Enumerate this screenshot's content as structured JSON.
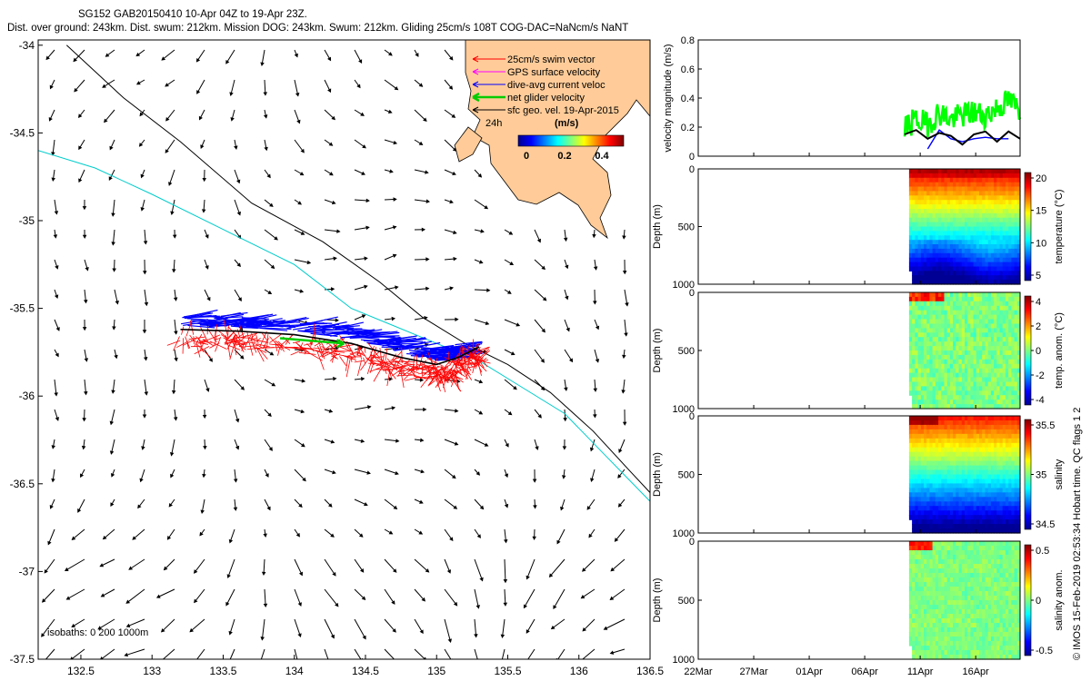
{
  "header": {
    "line1": "SG152 GAB20150410 10-Apr 04Z to 19-Apr 23Z.",
    "line2": "Dist. over ground: 243km. Dist. swum: 212km. Mission DOG: 243km. Swum: 212km. Gliding 25cm/s 108T COG-DAC=NaNcm/s NaNT"
  },
  "map": {
    "xticks": [
      "132.5",
      "133",
      "133.5",
      "134",
      "134.5",
      "135",
      "135.5",
      "136",
      "136.5"
    ],
    "yticks": [
      "-34",
      "-34.5",
      "-35",
      "-35.5",
      "-36",
      "-36.5",
      "-37",
      "-37.5"
    ],
    "legend": [
      {
        "label": "25cm/s swim vector",
        "color": "#ff0000"
      },
      {
        "label": "GPS surface velocity",
        "color": "#ff00ff"
      },
      {
        "label": "dive-avg current veloc",
        "color": "#0000ff"
      },
      {
        "label": "net glider velocity",
        "color": "#00cc00"
      },
      {
        "label": "sfc geo. vel. 19-Apr-2015",
        "color": "#000000"
      }
    ],
    "legend_24h": "24h",
    "colorbar_units": "(m/s)",
    "colorbar_ticks": [
      "0",
      "0.2",
      "0.4"
    ],
    "isobaths_label": "isobaths: 0   200  1000m",
    "colors": {
      "land": "#ffcc99",
      "isobath_200": "#00cccc",
      "isobath_1000": "#000000"
    }
  },
  "time_axis": {
    "ticks": [
      "22Mar",
      "27Mar",
      "01Apr",
      "06Apr",
      "11Apr",
      "16Apr"
    ]
  },
  "panels": [
    {
      "ylabel": "velocity magnitude (m/s)",
      "yticks": [
        "0",
        "0.2",
        "0.4",
        "0.6",
        "0.8"
      ]
    },
    {
      "ylabel": "Depth (m)",
      "yticks": [
        "0",
        "500",
        "1000"
      ],
      "cblabel": "temperature (°C)",
      "cbticks": [
        "20",
        "15",
        "10",
        "5"
      ]
    },
    {
      "ylabel": "Depth (m)",
      "yticks": [
        "0",
        "500",
        "1000"
      ],
      "cblabel": "temp. anom. (°C)",
      "cbticks": [
        "4",
        "2",
        "0",
        "-2",
        "-4"
      ]
    },
    {
      "ylabel": "Depth (m)",
      "yticks": [
        "0",
        "500",
        "1000"
      ],
      "cblabel": "salinity",
      "cbticks": [
        "35.5",
        "35",
        "34.5"
      ]
    },
    {
      "ylabel": "Depth (m)",
      "yticks": [
        "0",
        "500",
        "1000"
      ],
      "cblabel": "salinity anom.",
      "cbticks": [
        "0.5",
        "0",
        "-0.5"
      ]
    }
  ],
  "footer_vertical": "© IMOS 15-Feb-2019 02:53:34 Hobart time. QC flags 1  2",
  "chart_data": [
    {
      "type": "scatter",
      "title": "",
      "xlabel": "",
      "ylabel": "",
      "xlim": [
        132.2,
        136.5
      ],
      "ylim": [
        -37.5,
        -33.97
      ],
      "glider_track": {
        "x": [
          133.2,
          133.6,
          134.0,
          134.4,
          134.75,
          135.0,
          135.15,
          135.3
        ],
        "y": [
          -35.62,
          -35.63,
          -35.65,
          -35.7,
          -35.78,
          -35.82,
          -35.78,
          -35.72
        ]
      },
      "net_glider_velocity_arrow": {
        "from": [
          133.9,
          -35.67
        ],
        "to": [
          134.35,
          -35.7
        ]
      },
      "isobath_200m": {
        "x": [
          132.2,
          132.6,
          133.0,
          133.5,
          134.0,
          134.4,
          134.7,
          135.0,
          135.3,
          135.6,
          135.9,
          136.2,
          136.5
        ],
        "y": [
          -34.6,
          -34.7,
          -34.85,
          -35.05,
          -35.25,
          -35.5,
          -35.6,
          -35.7,
          -35.8,
          -35.95,
          -36.1,
          -36.35,
          -36.6
        ]
      },
      "isobath_1000m": {
        "x": [
          132.4,
          132.8,
          133.2,
          133.7,
          134.2,
          134.6,
          134.9,
          135.2,
          135.5,
          135.8,
          136.1,
          136.35,
          136.5
        ],
        "y": [
          -34.0,
          -34.3,
          -34.55,
          -34.9,
          -35.12,
          -35.35,
          -35.55,
          -35.7,
          -35.82,
          -35.98,
          -36.2,
          -36.42,
          -36.55
        ]
      }
    },
    {
      "type": "line",
      "title": "",
      "xlabel": "",
      "ylabel": "velocity magnitude (m/s)",
      "xlim": [
        "22Mar",
        "20Apr"
      ],
      "ylim": [
        0,
        0.8
      ],
      "series": [],
      "x": [
        "10Apr",
        "11Apr",
        "12Apr",
        "13Apr",
        "14Apr",
        "15Apr",
        "16Apr",
        "17Apr",
        "18Apr",
        "19Apr",
        "20Apr"
      ],
      "green_values": [
        0.2,
        0.25,
        0.22,
        0.3,
        0.25,
        0.28,
        0.3,
        0.28,
        0.33,
        0.38,
        0.32
      ],
      "black_values": [
        0.15,
        0.18,
        0.12,
        0.16,
        0.14,
        0.08,
        0.15,
        0.17,
        0.1,
        0.17,
        0.12
      ],
      "blue_values": [
        null,
        null,
        0.05,
        0.18,
        0.12,
        0.1,
        0.12,
        0.13,
        0.12,
        0.12,
        null
      ]
    },
    {
      "type": "heatmap",
      "ylabel": "Depth (m)",
      "ylim": [
        1000,
        0
      ],
      "xlim": [
        "22Mar",
        "20Apr"
      ],
      "data_span": [
        "10Apr",
        "20Apr"
      ],
      "clim": [
        3,
        22
      ],
      "cblabel": "temperature (°C)"
    },
    {
      "type": "heatmap",
      "ylabel": "Depth (m)",
      "ylim": [
        1000,
        0
      ],
      "xlim": [
        "22Mar",
        "20Apr"
      ],
      "data_span": [
        "10Apr",
        "20Apr"
      ],
      "clim": [
        -4,
        4
      ],
      "cblabel": "temp. anom. (°C)"
    },
    {
      "type": "heatmap",
      "ylabel": "Depth (m)",
      "ylim": [
        1000,
        0
      ],
      "xlim": [
        "22Mar",
        "20Apr"
      ],
      "data_span": [
        "10Apr",
        "20Apr"
      ],
      "clim": [
        34.3,
        35.9
      ],
      "cblabel": "salinity"
    },
    {
      "type": "heatmap",
      "ylabel": "Depth (m)",
      "ylim": [
        1000,
        0
      ],
      "xlim": [
        "22Mar",
        "20Apr"
      ],
      "data_span": [
        "10Apr",
        "20Apr"
      ],
      "clim": [
        -0.5,
        0.5
      ],
      "cblabel": "salinity anom."
    }
  ]
}
